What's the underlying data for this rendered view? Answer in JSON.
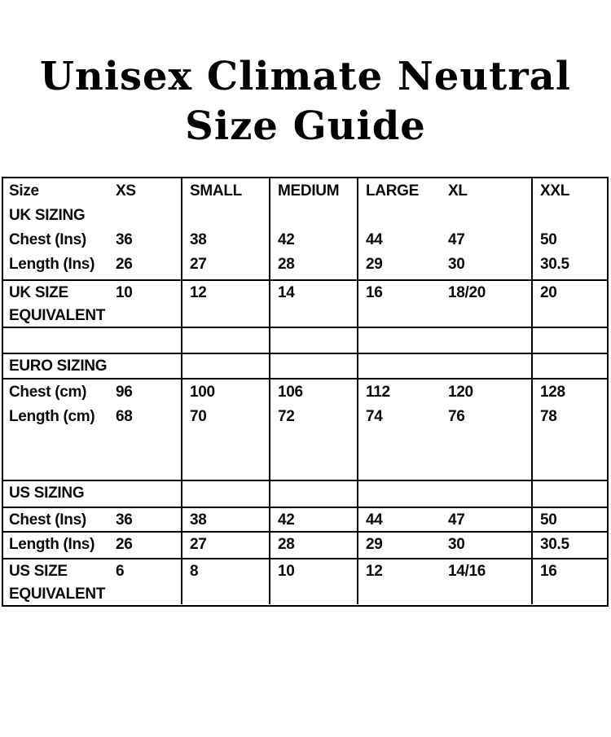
{
  "page": {
    "title_line1": "Unisex Climate Neutral",
    "title_line2": "Size Guide"
  },
  "table": {
    "header": {
      "size_label": "Size",
      "xs": "XS",
      "small": "SMALL",
      "medium": "MEDIUM",
      "large": "LARGE",
      "xl": "XL",
      "xxl": "XXL"
    },
    "uk": {
      "section_label": "UK SIZING",
      "chest": {
        "label": "Chest (Ins)",
        "xs": "36",
        "small": "38",
        "medium": "42",
        "large": "44",
        "xl": "47",
        "xxl": "50"
      },
      "length": {
        "label": "Length (Ins)",
        "xs": "26",
        "small": "27",
        "medium": "28",
        "large": "29",
        "xl": "30",
        "xxl": "30.5"
      },
      "equivalent": {
        "label_line1": "UK SIZE",
        "label_line2": "EQUIVALENT",
        "xs": "10",
        "small": "12",
        "medium": "14",
        "large": "16",
        "xl": "18/20",
        "xxl": "20"
      }
    },
    "euro": {
      "section_label": "EURO SIZING",
      "chest": {
        "label": "Chest (cm)",
        "xs": "96",
        "small": "100",
        "medium": "106",
        "large": "112",
        "xl": "120",
        "xxl": "128"
      },
      "length": {
        "label": "Length (cm)",
        "xs": "68",
        "small": "70",
        "medium": "72",
        "large": "74",
        "xl": "76",
        "xxl": "78"
      }
    },
    "us": {
      "section_label": "US SIZING",
      "chest": {
        "label": "Chest (Ins)",
        "xs": "36",
        "small": "38",
        "medium": "42",
        "large": "44",
        "xl": "47",
        "xxl": "50"
      },
      "length": {
        "label": "Length (Ins)",
        "xs": "26",
        "small": "27",
        "medium": "28",
        "large": "29",
        "xl": "30",
        "xxl": "30.5"
      },
      "equivalent": {
        "label_line1": "US SIZE",
        "label_line2": "EQUIVALENT",
        "xs": "6",
        "small": "8",
        "medium": "10",
        "large": "12",
        "xl": "14/16",
        "xxl": "16"
      }
    }
  }
}
